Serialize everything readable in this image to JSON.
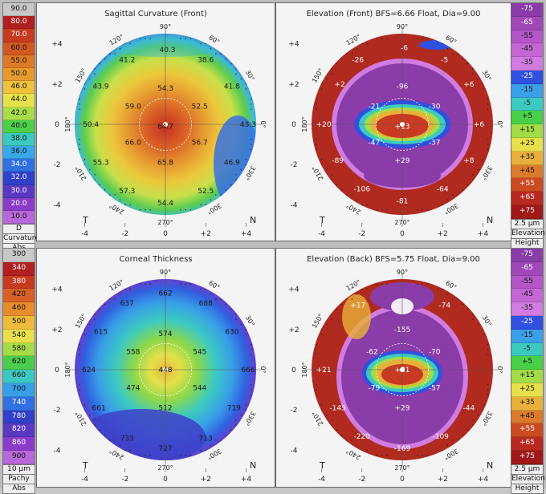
{
  "left_scale_top": {
    "values": [
      "90.0",
      "80.0",
      "70.0",
      "60.0",
      "55.0",
      "50.0",
      "46.0",
      "44.0",
      "42.0",
      "40.0",
      "38.0",
      "36.0",
      "34.0",
      "32.0",
      "30.0",
      "20.0",
      "10.0"
    ],
    "colors": [
      "#c8c8c8",
      "#b02020",
      "#c83a20",
      "#d05a22",
      "#dc7a26",
      "#e69a2e",
      "#eec23a",
      "#e6e24a",
      "#a8de48",
      "#4cd04a",
      "#3cc8c0",
      "#38a8e8",
      "#3070e0",
      "#3040c8",
      "#5a38c0",
      "#8a3cc8",
      "#b868d8"
    ],
    "foot": [
      "D",
      "Curvature",
      "Abs"
    ]
  },
  "left_scale_bottom": {
    "values": [
      "300",
      "340",
      "380",
      "420",
      "460",
      "500",
      "540",
      "580",
      "620",
      "660",
      "700",
      "740",
      "780",
      "820",
      "860",
      "900"
    ],
    "colors": [
      "#c8c8c8",
      "#b02020",
      "#c83a20",
      "#d86026",
      "#e88c2c",
      "#eebc3a",
      "#e8e04a",
      "#a4dc48",
      "#4ccc4c",
      "#3cc8c0",
      "#389ee8",
      "#3070e0",
      "#3040c8",
      "#5a38c0",
      "#8a3cc8",
      "#b868d8"
    ],
    "foot": [
      "10 μm",
      "Pachy",
      "Abs"
    ]
  },
  "right_scale_top": {
    "values": [
      "-75",
      "-65",
      "-55",
      "-45",
      "-35",
      "-25",
      "-15",
      "-5",
      "+5",
      "+15",
      "+25",
      "+35",
      "+45",
      "+55",
      "+65",
      "+75"
    ],
    "colors": [
      "#8a3ca8",
      "#a048b8",
      "#b456c8",
      "#c466d4",
      "#d07ce0",
      "#3050e0",
      "#3aa0e8",
      "#3ccac0",
      "#48d048",
      "#a4dc48",
      "#e8e04a",
      "#e8b03a",
      "#dc7a2c",
      "#cc4a22",
      "#b82a20",
      "#a01818"
    ],
    "foot": [
      "2.5 μm",
      "Elevation",
      "Height"
    ]
  },
  "right_scale_bottom": {
    "values": [
      "-75",
      "-65",
      "-55",
      "-45",
      "-35",
      "-25",
      "-15",
      "-5",
      "+5",
      "+15",
      "+25",
      "+35",
      "+45",
      "+55",
      "+65",
      "+75"
    ],
    "colors": [
      "#8a3ca8",
      "#a048b8",
      "#b456c8",
      "#c466d4",
      "#d07ce0",
      "#3050e0",
      "#3aa0e8",
      "#3ccac0",
      "#48d048",
      "#a4dc48",
      "#e8e04a",
      "#e8b03a",
      "#dc7a2c",
      "#cc4a22",
      "#b82a20",
      "#a01818"
    ],
    "foot": [
      "2.5 μm",
      "Elevation",
      "Height"
    ]
  },
  "panels": {
    "sagittal": {
      "title": "Sagittal Curvature (Front)",
      "values": [
        {
          "t": "40.3",
          "x": 0.1,
          "y": 3.7
        },
        {
          "t": "41.2",
          "x": -1.9,
          "y": 3.2
        },
        {
          "t": "38.6",
          "x": 2.0,
          "y": 3.2
        },
        {
          "t": "43.9",
          "x": -3.2,
          "y": 1.9
        },
        {
          "t": "41.8",
          "x": 3.3,
          "y": 1.9
        },
        {
          "t": "54.3",
          "x": 0.0,
          "y": 1.8
        },
        {
          "t": "59.0",
          "x": -1.6,
          "y": 0.9
        },
        {
          "t": "52.5",
          "x": 1.7,
          "y": 0.9
        },
        {
          "t": "50.4",
          "x": -3.7,
          "y": 0.0
        },
        {
          "t": "43.3",
          "x": 4.1,
          "y": 0.0
        },
        {
          "t": "64.7",
          "x": 0.0,
          "y": -0.1
        },
        {
          "t": "66.0",
          "x": -1.6,
          "y": -0.9
        },
        {
          "t": "56.7",
          "x": 1.7,
          "y": -0.9
        },
        {
          "t": "55.3",
          "x": -3.2,
          "y": -1.9
        },
        {
          "t": "65.8",
          "x": 0.0,
          "y": -1.9
        },
        {
          "t": "46.9",
          "x": 3.3,
          "y": -1.9
        },
        {
          "t": "57.3",
          "x": -1.9,
          "y": -3.3
        },
        {
          "t": "52.5",
          "x": 2.0,
          "y": -3.3
        },
        {
          "t": "54.4",
          "x": 0.0,
          "y": -3.9
        }
      ]
    },
    "elev_front": {
      "title": "Elevation (Front)  BFS=6.66 Float, Dia=9.00",
      "values": [
        {
          "t": "-6",
          "x": 0.1,
          "y": 3.8
        },
        {
          "t": "-26",
          "x": -2.2,
          "y": 3.2
        },
        {
          "t": "-5",
          "x": 2.1,
          "y": 3.2
        },
        {
          "t": "+2",
          "x": -3.1,
          "y": 2.0
        },
        {
          "t": "-96",
          "x": 0.0,
          "y": 1.9
        },
        {
          "t": "+6",
          "x": 3.3,
          "y": 2.0
        },
        {
          "t": "-21",
          "x": -1.4,
          "y": 0.9
        },
        {
          "t": "-30",
          "x": 1.6,
          "y": 0.9
        },
        {
          "t": "+20",
          "x": -3.9,
          "y": 0.0
        },
        {
          "t": "+13",
          "x": 0.0,
          "y": -0.1
        },
        {
          "t": "+6",
          "x": 3.8,
          "y": 0.0
        },
        {
          "t": "-47",
          "x": -1.4,
          "y": -0.9
        },
        {
          "t": "-37",
          "x": 1.6,
          "y": -0.9
        },
        {
          "t": "-89",
          "x": -3.2,
          "y": -1.8
        },
        {
          "t": "+29",
          "x": 0.0,
          "y": -1.8
        },
        {
          "t": "+8",
          "x": 3.3,
          "y": -1.8
        },
        {
          "t": "-106",
          "x": -2.0,
          "y": -3.2
        },
        {
          "t": "-64",
          "x": 2.0,
          "y": -3.2
        },
        {
          "t": "-81",
          "x": 0.0,
          "y": -3.8
        }
      ]
    },
    "pachy": {
      "title": "Corneal Thickness",
      "values": [
        {
          "t": "662",
          "x": 0.0,
          "y": 3.8
        },
        {
          "t": "637",
          "x": -1.9,
          "y": 3.3
        },
        {
          "t": "688",
          "x": 2.0,
          "y": 3.3
        },
        {
          "t": "615",
          "x": -3.2,
          "y": 1.9
        },
        {
          "t": "574",
          "x": 0.0,
          "y": 1.8
        },
        {
          "t": "630",
          "x": 3.3,
          "y": 1.9
        },
        {
          "t": "558",
          "x": -1.6,
          "y": 0.9
        },
        {
          "t": "545",
          "x": 1.7,
          "y": 0.9
        },
        {
          "t": "624",
          "x": -3.8,
          "y": 0.0
        },
        {
          "t": "448",
          "x": 0.0,
          "y": 0.0
        },
        {
          "t": "666",
          "x": 4.1,
          "y": 0.0
        },
        {
          "t": "474",
          "x": -1.6,
          "y": -0.9
        },
        {
          "t": "544",
          "x": 1.7,
          "y": -0.9
        },
        {
          "t": "661",
          "x": -3.3,
          "y": -1.9
        },
        {
          "t": "512",
          "x": 0.0,
          "y": -1.9
        },
        {
          "t": "719",
          "x": 3.4,
          "y": -1.9
        },
        {
          "t": "733",
          "x": -1.9,
          "y": -3.4
        },
        {
          "t": "713",
          "x": 2.0,
          "y": -3.4
        },
        {
          "t": "727",
          "x": 0.0,
          "y": -3.9
        }
      ]
    },
    "elev_back": {
      "title": "Elevation (Back)  BFS=5.75 Float, Dia=9.00",
      "values": [
        {
          "t": "+17",
          "x": -2.2,
          "y": 3.2
        },
        {
          "t": "-74",
          "x": 2.1,
          "y": 3.2
        },
        {
          "t": "-155",
          "x": 0.0,
          "y": 2.0
        },
        {
          "t": "-62",
          "x": -1.5,
          "y": 0.9
        },
        {
          "t": "-70",
          "x": 1.6,
          "y": 0.9
        },
        {
          "t": "+21",
          "x": -3.9,
          "y": 0.0
        },
        {
          "t": "+31",
          "x": 0.0,
          "y": 0.0
        },
        {
          "t": "-79",
          "x": -1.4,
          "y": -0.9
        },
        {
          "t": "-57",
          "x": 1.6,
          "y": -0.9
        },
        {
          "t": "-145",
          "x": -3.2,
          "y": -1.9
        },
        {
          "t": "+29",
          "x": 0.0,
          "y": -1.9
        },
        {
          "t": "-44",
          "x": 3.3,
          "y": -1.9
        },
        {
          "t": "-220",
          "x": -2.0,
          "y": -3.3
        },
        {
          "t": "-109",
          "x": 1.9,
          "y": -3.3
        },
        {
          "t": "-169",
          "x": 0.0,
          "y": -3.9
        }
      ]
    }
  },
  "axis": {
    "x_ticks": [
      "-4",
      "-2",
      "0",
      "+2",
      "+4"
    ],
    "y_ticks": [
      "+4",
      "+2",
      "0",
      "-2",
      "-4"
    ],
    "angles": [
      "90°",
      "60°",
      "30°",
      "0°",
      "330°",
      "300°",
      "270°",
      "240°",
      "210°",
      "180°",
      "150°",
      "120°"
    ],
    "t_label": "T",
    "n_label": "N"
  }
}
